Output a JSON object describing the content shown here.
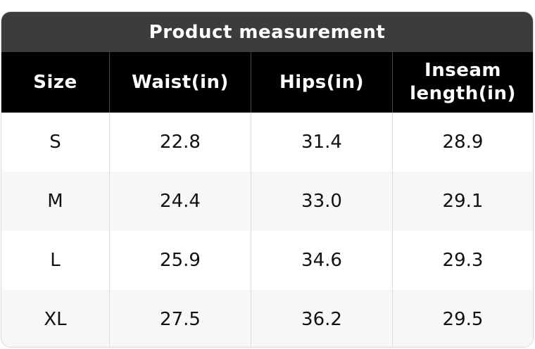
{
  "table": {
    "title": "Product measurement",
    "columns": [
      "Size",
      "Waist(in)",
      "Hips(in)",
      "Inseam length(in)"
    ],
    "rows": [
      [
        "S",
        "22.8",
        "31.4",
        "28.9"
      ],
      [
        "M",
        "24.4",
        "33.0",
        "29.1"
      ],
      [
        "L",
        "25.9",
        "34.6",
        "29.3"
      ],
      [
        "XL",
        "27.5",
        "36.2",
        "29.5"
      ]
    ]
  }
}
